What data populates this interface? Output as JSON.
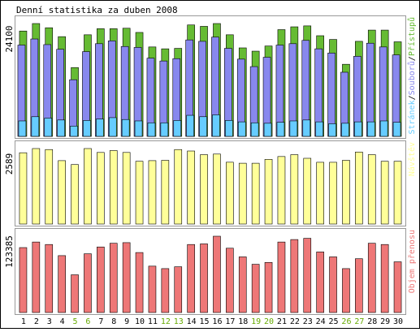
{
  "title": "Denní statistika za duben 2008",
  "colors": {
    "hits": "#66bb33",
    "files": "#8888ee",
    "pages": "#66ccff",
    "visits": "#ffff99",
    "volume": "#ee7777",
    "weekday_label": "#000000",
    "weekend_label": "#66aa00",
    "frame": "#000000",
    "panel_border": "#999999"
  },
  "chart_data": [
    {
      "type": "bar",
      "panel": "requests",
      "ymax_label": "24100",
      "ylim": [
        0,
        24100
      ],
      "legend": [
        {
          "key": "pages",
          "label": "Stránek",
          "color": "#66ccff"
        },
        {
          "key": "files",
          "label": "Souborů",
          "color": "#8888ee"
        },
        {
          "key": "hits",
          "label": "Přístupů",
          "color": "#66bb33"
        }
      ],
      "legend_separator": "/",
      "categories": [
        "1",
        "2",
        "3",
        "4",
        "5",
        "6",
        "7",
        "8",
        "9",
        "10",
        "11",
        "12",
        "13",
        "14",
        "15",
        "16",
        "17",
        "18",
        "19",
        "20",
        "21",
        "22",
        "23",
        "24",
        "25",
        "26",
        "27",
        "28",
        "29",
        "30"
      ],
      "series": [
        {
          "name": "Přístupů",
          "key": "hits",
          "values": [
            22500,
            24100,
            23200,
            21300,
            14700,
            21700,
            23000,
            23000,
            23100,
            22200,
            19100,
            18700,
            18800,
            23800,
            23500,
            24100,
            21700,
            18900,
            18200,
            19300,
            22800,
            23400,
            23600,
            21500,
            20700,
            15400,
            20300,
            22700,
            22700,
            20200
          ]
        },
        {
          "name": "Souborů",
          "key": "files",
          "values": [
            19500,
            20800,
            19600,
            18600,
            12100,
            18100,
            19800,
            20400,
            19200,
            19000,
            16700,
            16100,
            16600,
            20600,
            20300,
            21200,
            18800,
            16500,
            14900,
            16900,
            19500,
            19800,
            20500,
            18700,
            17800,
            13700,
            17100,
            19900,
            19100,
            17400
          ]
        },
        {
          "name": "Stránek",
          "key": "pages",
          "values": [
            3300,
            4200,
            3900,
            3500,
            2200,
            3400,
            3700,
            4000,
            3600,
            3300,
            2900,
            2900,
            3400,
            4500,
            4200,
            4600,
            3400,
            3100,
            2900,
            2800,
            3000,
            3300,
            3500,
            3100,
            2700,
            2800,
            3100,
            3100,
            3300,
            3000
          ]
        }
      ]
    },
    {
      "type": "bar",
      "panel": "visits",
      "ymax_label": "2589",
      "ylim": [
        0,
        2589
      ],
      "legend": [
        {
          "key": "visits",
          "label": "Návštěv",
          "color": "#ffff99"
        }
      ],
      "categories": [
        "1",
        "2",
        "3",
        "4",
        "5",
        "6",
        "7",
        "8",
        "9",
        "10",
        "11",
        "12",
        "13",
        "14",
        "15",
        "16",
        "17",
        "18",
        "19",
        "20",
        "21",
        "22",
        "23",
        "24",
        "25",
        "26",
        "27",
        "28",
        "29",
        "30"
      ],
      "series": [
        {
          "name": "Návštěv",
          "key": "visits",
          "values": [
            2445,
            2589,
            2555,
            2174,
            2040,
            2589,
            2455,
            2520,
            2455,
            2152,
            2174,
            2185,
            2555,
            2505,
            2380,
            2400,
            2120,
            2085,
            2085,
            2218,
            2315,
            2380,
            2255,
            2118,
            2118,
            2185,
            2470,
            2380,
            2152,
            2152
          ]
        }
      ]
    },
    {
      "type": "bar",
      "panel": "volume",
      "ymax_label": "123385",
      "ylim": [
        0,
        123385
      ],
      "legend": [
        {
          "key": "volume",
          "label": "Objem přenosu",
          "color": "#ee7777"
        }
      ],
      "categories": [
        "1",
        "2",
        "3",
        "4",
        "5",
        "6",
        "7",
        "8",
        "9",
        "10",
        "11",
        "12",
        "13",
        "14",
        "15",
        "16",
        "17",
        "18",
        "19",
        "20",
        "21",
        "22",
        "23",
        "24",
        "25",
        "26",
        "27",
        "28",
        "29",
        "30"
      ],
      "series": [
        {
          "name": "Objem přenosu",
          "key": "volume",
          "values": [
            105000,
            114000,
            110000,
            92000,
            61000,
            95000,
            106000,
            112000,
            113000,
            97000,
            75000,
            71000,
            74000,
            110000,
            111000,
            123385,
            104000,
            90000,
            78000,
            81000,
            114000,
            118000,
            120000,
            98000,
            90000,
            71000,
            87000,
            112000,
            110000,
            82000
          ]
        }
      ]
    }
  ]
}
